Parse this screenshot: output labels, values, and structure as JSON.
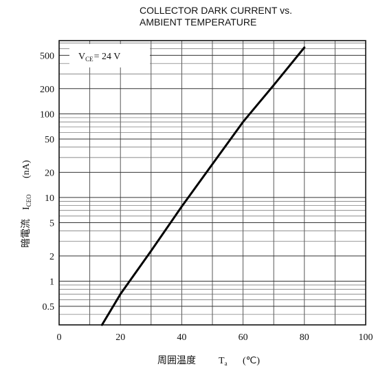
{
  "chart_data": {
    "type": "line",
    "title_lines": [
      "COLLECTOR DARK CURRENT vs.",
      "AMBIENT TEMPERATURE"
    ],
    "xlabel": "周囲温度",
    "xlabel_symbol": "T",
    "xlabel_subscript": "a",
    "xlabel_unit": "(℃)",
    "ylabel": "暗電流",
    "ylabel_symbol": "I",
    "ylabel_subscript": "CEO",
    "ylabel_unit": "(nA)",
    "annotation": {
      "symbol": "V",
      "subscript": "CE",
      "text": "= 24  V"
    },
    "x_scale": "linear",
    "y_scale": "log",
    "xlim": [
      0,
      100
    ],
    "ylim": [
      0.3,
      750
    ],
    "x_ticks": [
      0,
      20,
      40,
      60,
      80,
      100
    ],
    "x_tick_labels": [
      "0",
      "20",
      "40",
      "60",
      "80",
      "100"
    ],
    "y_ticks": [
      0.5,
      1,
      2,
      5,
      10,
      20,
      50,
      100,
      200,
      500
    ],
    "y_tick_labels": [
      "0.5",
      "1",
      "2",
      "5",
      "10",
      "20",
      "50",
      "100",
      "200",
      "500"
    ],
    "grid": true,
    "series": [
      {
        "x": [
          14,
          20,
          30,
          40,
          50,
          60,
          70,
          80
        ],
        "y": [
          0.3,
          0.7,
          2.3,
          7.8,
          25,
          80,
          220,
          620
        ]
      }
    ]
  }
}
